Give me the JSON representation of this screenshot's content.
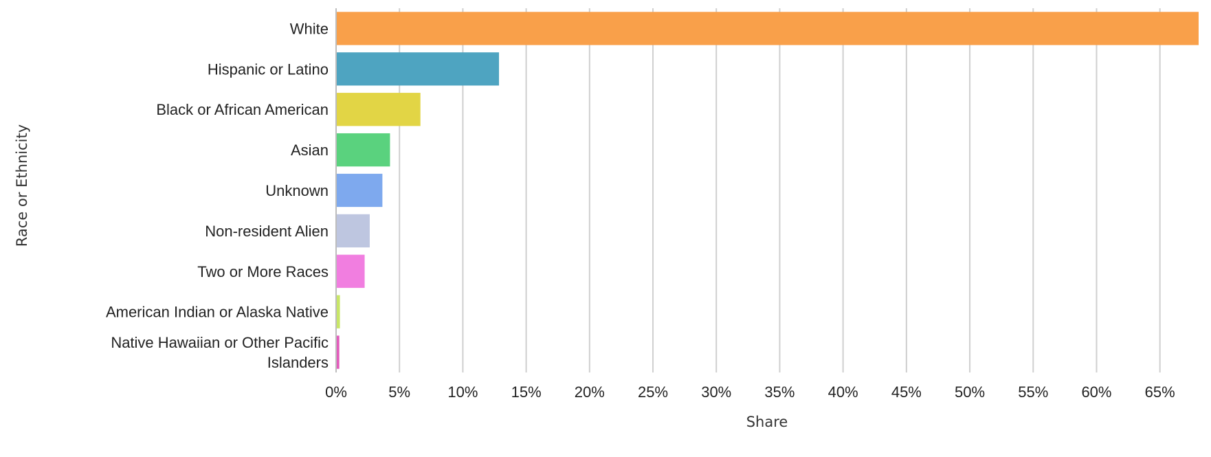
{
  "chart_data": {
    "type": "bar",
    "orientation": "horizontal",
    "title": "",
    "xlabel": "Share",
    "ylabel": "Race or Ethnicity",
    "xlim": [
      0,
      68
    ],
    "x_ticks": [
      0,
      5,
      10,
      15,
      20,
      25,
      30,
      35,
      40,
      45,
      50,
      55,
      60,
      65
    ],
    "x_tick_labels": [
      "0%",
      "5%",
      "10%",
      "15%",
      "20%",
      "25%",
      "30%",
      "35%",
      "40%",
      "45%",
      "50%",
      "55%",
      "60%",
      "65%"
    ],
    "grid": true,
    "legend": false,
    "categories": [
      "White",
      "Hispanic or Latino",
      "Black or African American",
      "Asian",
      "Unknown",
      "Non-resident Alien",
      "Two or More Races",
      "American Indian or Alaska Native",
      "Native Hawaiian or Other Pacific Islanders"
    ],
    "category_label_lines": [
      [
        "White"
      ],
      [
        "Hispanic or Latino"
      ],
      [
        "Black or African American"
      ],
      [
        "Asian"
      ],
      [
        "Unknown"
      ],
      [
        "Non-resident Alien"
      ],
      [
        "Two or More Races"
      ],
      [
        "American Indian or Alaska Native"
      ],
      [
        "Native Hawaiian or Other Pacific",
        "Islanders"
      ]
    ],
    "values": [
      68.0,
      12.8,
      6.6,
      4.2,
      3.6,
      2.6,
      2.2,
      0.25,
      0.2
    ],
    "colors": [
      "#f9a04a",
      "#4ea4c1",
      "#e2d545",
      "#5ad27e",
      "#7ea9ee",
      "#bec6e0",
      "#f17ee0",
      "#c8e667",
      "#e25cbc"
    ]
  }
}
